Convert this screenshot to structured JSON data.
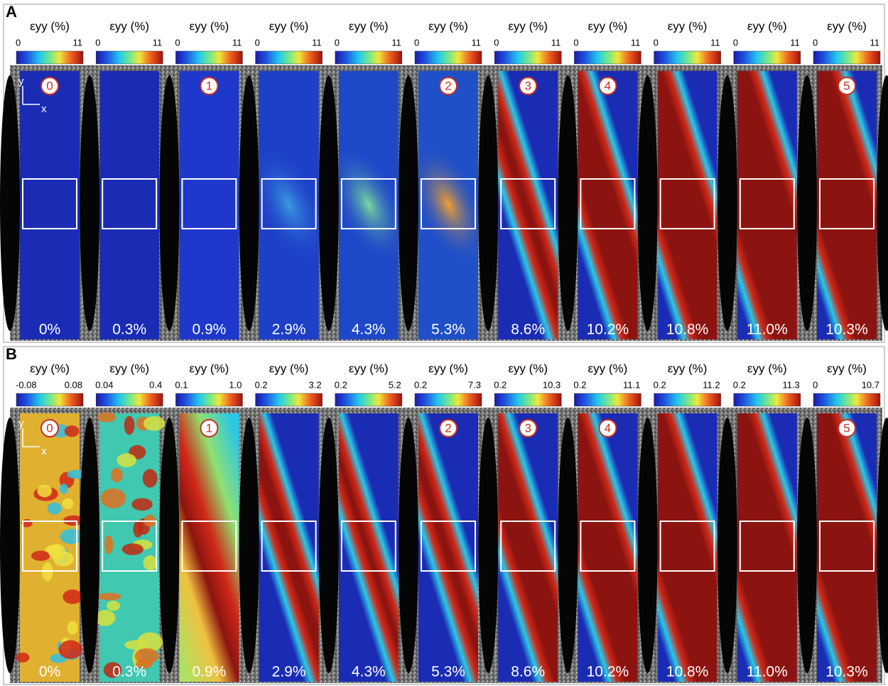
{
  "panels": [
    {
      "label": "A",
      "axis_y": "y",
      "axis_x": "x",
      "columns": [
        {
          "header": "εyy (%)",
          "min": "0",
          "max": "11",
          "marker": "0",
          "strain": "0%"
        },
        {
          "header": "εyy (%)",
          "min": "0",
          "max": "11",
          "strain": "0.3%"
        },
        {
          "header": "εyy (%)",
          "min": "0",
          "max": "11",
          "marker": "1",
          "strain": "0.9%"
        },
        {
          "header": "εyy (%)",
          "min": "0",
          "max": "11",
          "strain": "2.9%"
        },
        {
          "header": "εyy (%)",
          "min": "0",
          "max": "11",
          "strain": "4.3%"
        },
        {
          "header": "εyy (%)",
          "min": "0",
          "max": "11",
          "marker": "2",
          "strain": "5.3%"
        },
        {
          "header": "εyy (%)",
          "min": "0",
          "max": "11",
          "marker": "3",
          "strain": "8.6%"
        },
        {
          "header": "εyy (%)",
          "min": "0",
          "max": "11",
          "marker": "4",
          "strain": "10.2%"
        },
        {
          "header": "εyy (%)",
          "min": "0",
          "max": "11",
          "strain": "10.8%"
        },
        {
          "header": "εyy (%)",
          "min": "0",
          "max": "11",
          "strain": "11.0%"
        },
        {
          "header": "εyy (%)",
          "min": "0",
          "max": "11",
          "marker": "5",
          "strain": "10.3%"
        }
      ]
    },
    {
      "label": "B",
      "axis_y": "y",
      "axis_x": "x",
      "columns": [
        {
          "header": "εyy (%)",
          "min": "-0.08",
          "max": "0.08",
          "marker": "0",
          "strain": "0%"
        },
        {
          "header": "εyy (%)",
          "min": "0.04",
          "max": "0.4",
          "strain": "0.3%"
        },
        {
          "header": "εyy (%)",
          "min": "0.1",
          "max": "1.0",
          "marker": "1",
          "strain": "0.9%"
        },
        {
          "header": "εyy (%)",
          "min": "0.2",
          "max": "3.2",
          "strain": "2.9%"
        },
        {
          "header": "εyy (%)",
          "min": "0.2",
          "max": "5.2",
          "strain": "4.3%"
        },
        {
          "header": "εyy (%)",
          "min": "0.2",
          "max": "7.3",
          "marker": "2",
          "strain": "5.3%"
        },
        {
          "header": "εyy (%)",
          "min": "0.2",
          "max": "10.3",
          "marker": "3",
          "strain": "8.6%"
        },
        {
          "header": "εyy (%)",
          "min": "0.2",
          "max": "11.1",
          "marker": "4",
          "strain": "10.2%"
        },
        {
          "header": "εyy (%)",
          "min": "0.2",
          "max": "11.2",
          "strain": "10.8%"
        },
        {
          "header": "εyy (%)",
          "min": "0.2",
          "max": "11.3",
          "strain": "11.0%"
        },
        {
          "header": "εyy (%)",
          "min": "0",
          "max": "10.7",
          "marker": "5",
          "strain": "10.3%"
        }
      ]
    }
  ]
}
